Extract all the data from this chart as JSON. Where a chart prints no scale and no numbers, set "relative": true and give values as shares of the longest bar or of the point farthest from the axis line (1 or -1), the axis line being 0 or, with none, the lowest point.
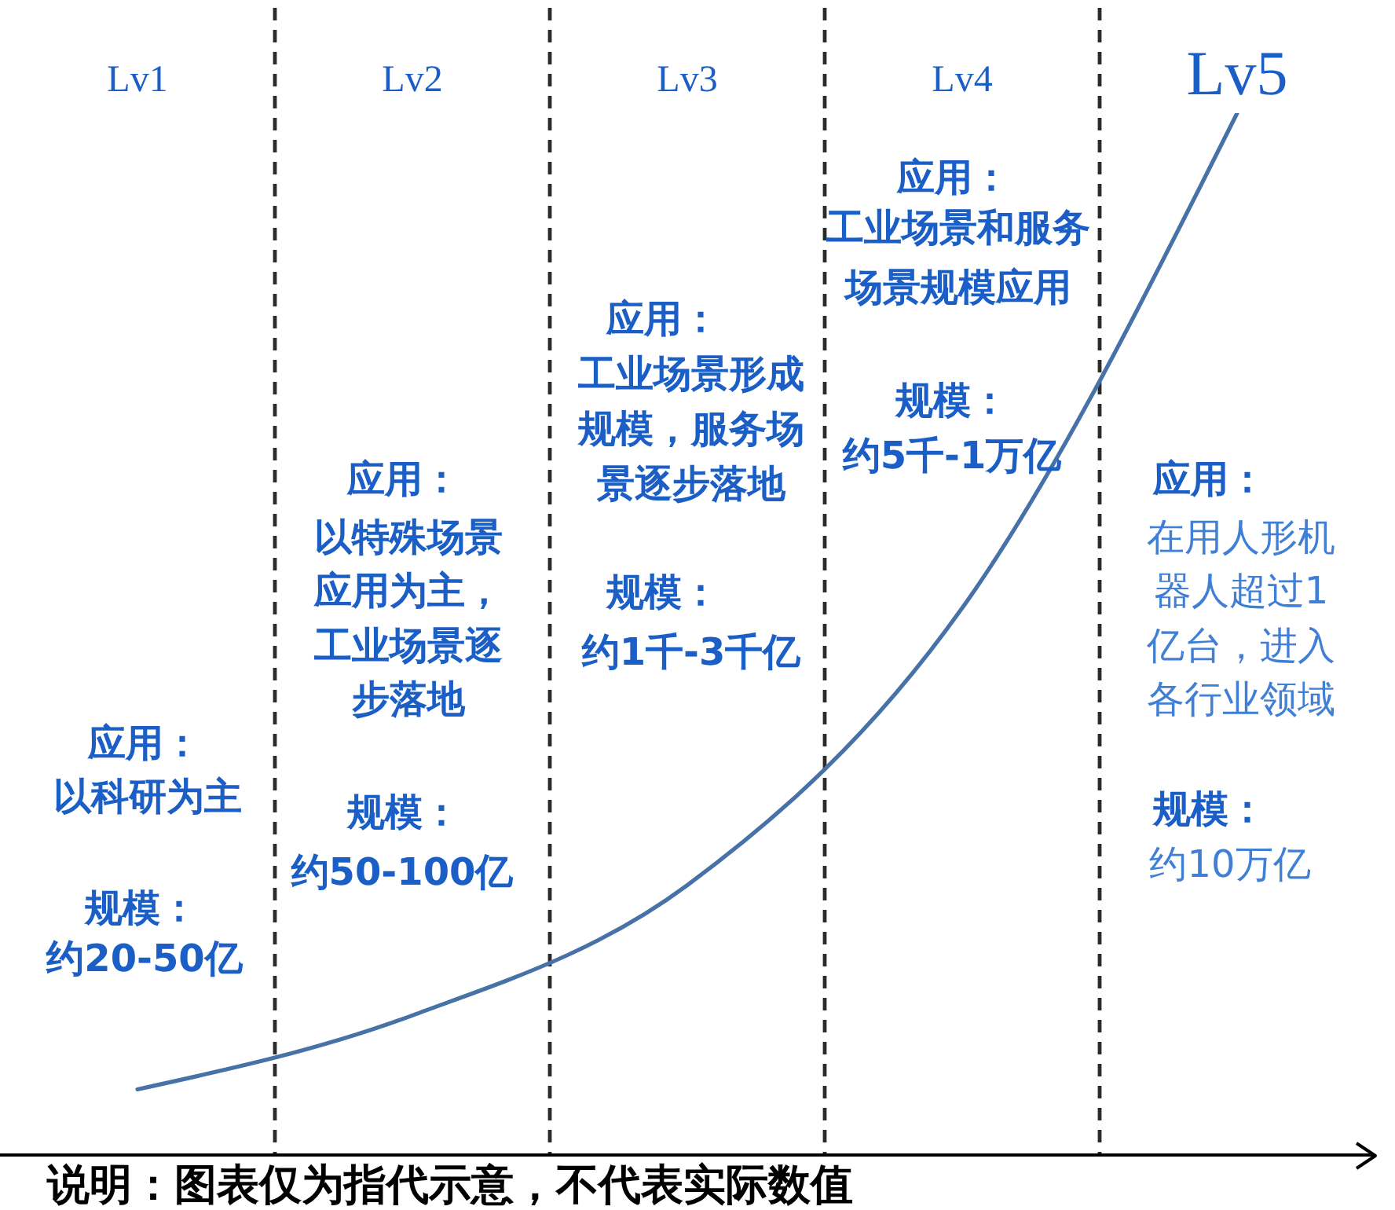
{
  "chart_data": {
    "type": "line",
    "categories": [
      "Lv1",
      "Lv2",
      "Lv3",
      "Lv4",
      "Lv5"
    ],
    "series": [
      {
        "color": "#4672a8",
        "values": [
          0.063,
          0.134,
          0.259,
          0.525,
          1
        ]
      }
    ],
    "relative": true,
    "marker": "none",
    "line_style": "solid",
    "grid": "x",
    "annotations": [
      "应用：",
      "以科研为主",
      "规模：",
      "约20-50亿",
      "应用：",
      "以特殊场景应用为主，工业场景逐步落地",
      "规模：",
      "约50-100亿",
      "应用：",
      "工业场景形成规模，服务场景逐步落地",
      "规模：",
      "约1千-3千亿",
      "应用：",
      "工业场景和服务场景规模应用",
      "规模：",
      "约5千-1万亿",
      "应用：",
      "在用人形机器人超过1亿台，进入各行业领域",
      "规模：",
      "约10万亿",
      "说明：图表仅为指代示意，不代表实际数值"
    ]
  }
}
